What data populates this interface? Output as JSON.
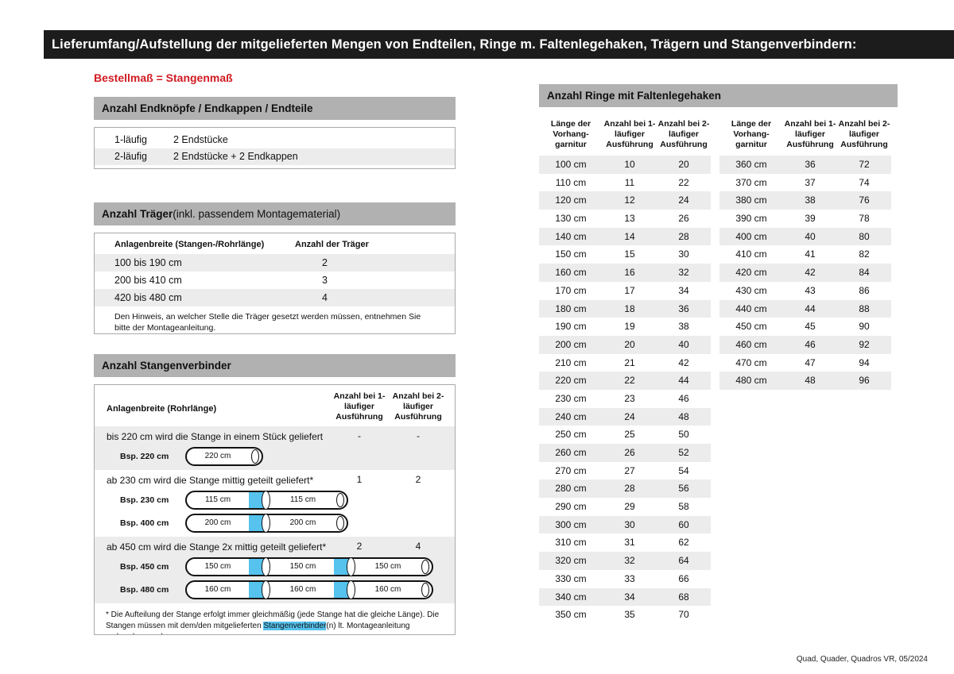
{
  "page": {
    "title": "Lieferumfang/Aufstellung der mitgelieferten Mengen von Endteilen, Ringe m. Faltenlegehaken, Trägern und Stangenverbindern:",
    "subtitle_red": "Bestellmaß = Stangenmaß",
    "footer": "Quad, Quader, Quadros VR, 05/2024"
  },
  "colors": {
    "accent_red": "#d11a21",
    "highlight_blue": "#56c2ee",
    "header_gray": "#b1b1b1",
    "row_gray": "#ececec",
    "topbar_black": "#1c1c1c"
  },
  "endteile": {
    "title": "Anzahl Endknöpfe / Endkappen / Endteile",
    "rows": [
      {
        "label": "1-läufig",
        "value": "2 Endstücke"
      },
      {
        "label": "2-läufig",
        "value": "2 Endstücke + 2 Endkappen"
      }
    ]
  },
  "traeger": {
    "title": "Anzahl Träger",
    "title_suffix": " (inkl. passendem Montagematerial)",
    "col1": "Anlagenbreite (Stangen-/Rohrlänge)",
    "col2": "Anzahl der Träger",
    "rows": [
      {
        "label": "100 bis 190 cm",
        "value": "2"
      },
      {
        "label": "200 bis 410 cm",
        "value": "3"
      },
      {
        "label": "420 bis 480 cm",
        "value": "4"
      }
    ],
    "note": "Den Hinweis, an welcher Stelle die Träger gesetzt werden müssen, entnehmen Sie bitte der Montageanleitung."
  },
  "verbinder": {
    "title": "Anzahl Stangenverbinder",
    "col1": "Anlagenbreite (Rohrlänge)",
    "col2": "Anzahl bei 1-läufiger Ausführung",
    "col3": "Anzahl bei 2-läufiger Ausführung",
    "sections": [
      {
        "text": "bis 220 cm wird die Stange in einem Stück geliefert",
        "v1": "-",
        "v2": "-"
      },
      {
        "text": "ab 230 cm wird die Stange mittig geteilt geliefert*",
        "v1": "1",
        "v2": "2"
      },
      {
        "text": "ab 450 cm wird die Stange 2x mittig geteilt geliefert*",
        "v1": "2",
        "v2": "4"
      }
    ],
    "examples": [
      {
        "label": "Bsp. 220 cm",
        "segments": [
          "220 cm"
        ]
      },
      {
        "label": "Bsp. 230 cm",
        "segments": [
          "115 cm",
          "115 cm"
        ]
      },
      {
        "label": "Bsp. 400 cm",
        "segments": [
          "200 cm",
          "200 cm"
        ]
      },
      {
        "label": "Bsp. 450 cm",
        "segments": [
          "150 cm",
          "150 cm",
          "150 cm"
        ]
      },
      {
        "label": "Bsp. 480 cm",
        "segments": [
          "160 cm",
          "160 cm",
          "160 cm"
        ]
      }
    ],
    "footnote_pre": "* Die Aufteilung der Stange erfolgt immer gleichmäßig (jede Stange hat die gleiche Länge). Die Stangen müssen mit dem/den mitgelieferten ",
    "footnote_highlight": "Stangenverbinder",
    "footnote_post": "(n) lt. Montageanleitung verbunden werden."
  },
  "ringe": {
    "title": "Anzahl Ringe mit Faltenlegehaken",
    "col_len": "Länge der Vorhang-garnitur",
    "col_v1": "Anzahl bei 1-läufiger Ausführung",
    "col_v2": "Anzahl bei 2-läufiger Ausführung",
    "table1": [
      {
        "len": "100 cm",
        "v1": "10",
        "v2": "20"
      },
      {
        "len": "110 cm",
        "v1": "11",
        "v2": "22"
      },
      {
        "len": "120 cm",
        "v1": "12",
        "v2": "24"
      },
      {
        "len": "130 cm",
        "v1": "13",
        "v2": "26"
      },
      {
        "len": "140 cm",
        "v1": "14",
        "v2": "28"
      },
      {
        "len": "150 cm",
        "v1": "15",
        "v2": "30"
      },
      {
        "len": "160 cm",
        "v1": "16",
        "v2": "32"
      },
      {
        "len": "170 cm",
        "v1": "17",
        "v2": "34"
      },
      {
        "len": "180 cm",
        "v1": "18",
        "v2": "36"
      },
      {
        "len": "190 cm",
        "v1": "19",
        "v2": "38"
      },
      {
        "len": "200 cm",
        "v1": "20",
        "v2": "40"
      },
      {
        "len": "210 cm",
        "v1": "21",
        "v2": "42"
      },
      {
        "len": "220 cm",
        "v1": "22",
        "v2": "44"
      },
      {
        "len": "230 cm",
        "v1": "23",
        "v2": "46"
      },
      {
        "len": "240 cm",
        "v1": "24",
        "v2": "48"
      },
      {
        "len": "250 cm",
        "v1": "25",
        "v2": "50"
      },
      {
        "len": "260 cm",
        "v1": "26",
        "v2": "52"
      },
      {
        "len": "270 cm",
        "v1": "27",
        "v2": "54"
      },
      {
        "len": "280 cm",
        "v1": "28",
        "v2": "56"
      },
      {
        "len": "290 cm",
        "v1": "29",
        "v2": "58"
      },
      {
        "len": "300 cm",
        "v1": "30",
        "v2": "60"
      },
      {
        "len": "310 cm",
        "v1": "31",
        "v2": "62"
      },
      {
        "len": "320 cm",
        "v1": "32",
        "v2": "64"
      },
      {
        "len": "330 cm",
        "v1": "33",
        "v2": "66"
      },
      {
        "len": "340 cm",
        "v1": "34",
        "v2": "68"
      },
      {
        "len": "350 cm",
        "v1": "35",
        "v2": "70"
      }
    ],
    "table2": [
      {
        "len": "360 cm",
        "v1": "36",
        "v2": "72"
      },
      {
        "len": "370 cm",
        "v1": "37",
        "v2": "74"
      },
      {
        "len": "380 cm",
        "v1": "38",
        "v2": "76"
      },
      {
        "len": "390 cm",
        "v1": "39",
        "v2": "78"
      },
      {
        "len": "400 cm",
        "v1": "40",
        "v2": "80"
      },
      {
        "len": "410 cm",
        "v1": "41",
        "v2": "82"
      },
      {
        "len": "420 cm",
        "v1": "42",
        "v2": "84"
      },
      {
        "len": "430 cm",
        "v1": "43",
        "v2": "86"
      },
      {
        "len": "440 cm",
        "v1": "44",
        "v2": "88"
      },
      {
        "len": "450 cm",
        "v1": "45",
        "v2": "90"
      },
      {
        "len": "460 cm",
        "v1": "46",
        "v2": "92"
      },
      {
        "len": "470 cm",
        "v1": "47",
        "v2": "94"
      },
      {
        "len": "480 cm",
        "v1": "48",
        "v2": "96"
      }
    ]
  }
}
